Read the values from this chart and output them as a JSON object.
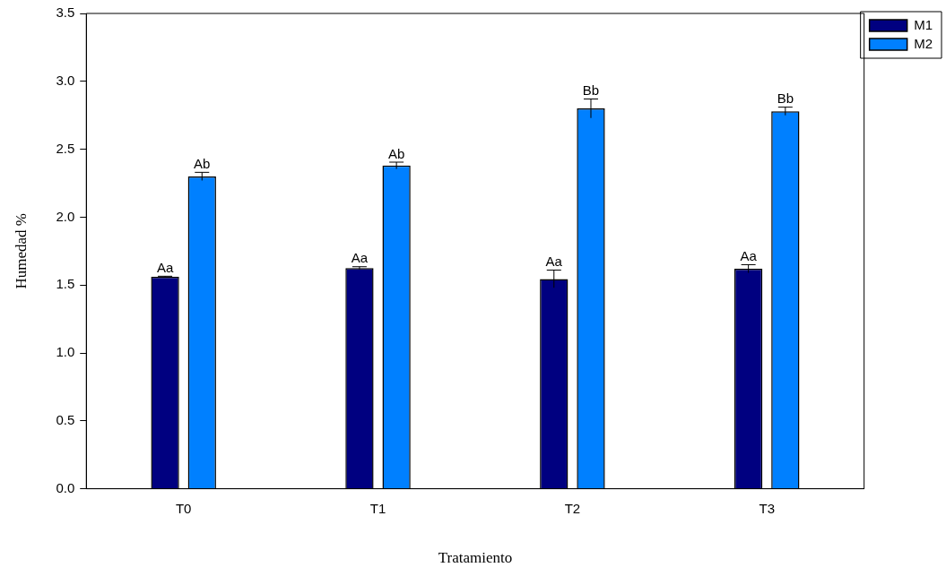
{
  "chart_data": {
    "type": "bar",
    "xlabel": "Tratamiento",
    "ylabel": "Humedad %",
    "categories": [
      "T0",
      "T1",
      "T2",
      "T3"
    ],
    "series": [
      {
        "name": "M1",
        "color": "#000080",
        "values": [
          1.56,
          1.625,
          1.545,
          1.62
        ],
        "errors": [
          0.005,
          0.01,
          0.065,
          0.03
        ],
        "value_labels": [
          "Aa",
          "Aa",
          "Aa",
          "Aa"
        ]
      },
      {
        "name": "M2",
        "color": "#0080ff",
        "values": [
          2.3,
          2.38,
          2.8,
          2.78
        ],
        "errors": [
          0.03,
          0.025,
          0.07,
          0.03
        ],
        "value_labels": [
          "Ab",
          "Ab",
          "Bb",
          "Bb"
        ]
      }
    ],
    "ylim": [
      0,
      3.5
    ],
    "yticks": [
      {
        "value": 0,
        "label": "0.0"
      },
      {
        "value": 0.5,
        "label": "0.5"
      },
      {
        "value": 1,
        "label": "1.0"
      },
      {
        "value": 1.5,
        "label": "1.5"
      },
      {
        "value": 2,
        "label": "2.0"
      },
      {
        "value": 2.5,
        "label": "2.5"
      },
      {
        "value": 3,
        "label": "3.0"
      },
      {
        "value": 3.5,
        "label": "3.5"
      }
    ],
    "grid": false,
    "legend": "top right"
  }
}
